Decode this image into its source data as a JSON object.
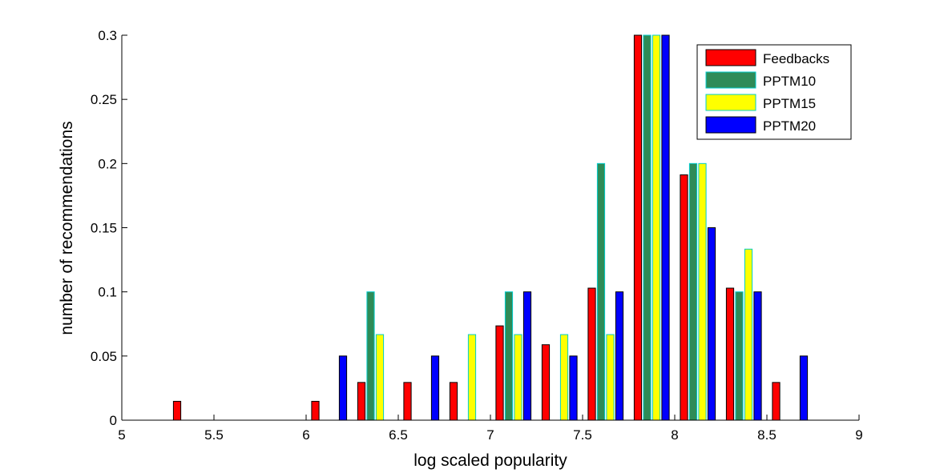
{
  "chart_data": {
    "type": "bar",
    "title": "",
    "xlabel": "log scaled popularity",
    "ylabel": "number of recommendations",
    "xlim": [
      5,
      9
    ],
    "ylim": [
      0,
      0.3
    ],
    "xticks": [
      "5",
      "5.5",
      "6",
      "6.5",
      "7",
      "7.5",
      "8",
      "8.5",
      "9"
    ],
    "yticks": [
      "0",
      "0.05",
      "0.1",
      "0.15",
      "0.2",
      "0.25",
      "0.3"
    ],
    "grid": false,
    "legend_position": "top-right",
    "bin_centers": [
      5.125,
      5.375,
      5.625,
      5.875,
      6.125,
      6.375,
      6.625,
      6.875,
      7.125,
      7.375,
      7.625,
      7.875,
      8.125,
      8.375,
      8.625,
      8.875
    ],
    "series": [
      {
        "name": "Feedbacks",
        "color": "#ff0000",
        "edge": "#000000",
        "values": [
          0,
          0.0147,
          0,
          0,
          0.0147,
          0.0294,
          0.0294,
          0.0294,
          0.0735,
          0.0588,
          0.1029,
          0.3,
          0.1912,
          0.1029,
          0.0294,
          0
        ]
      },
      {
        "name": "PPTM10",
        "color": "#2e8b57",
        "edge": "#00cccc",
        "values": [
          0,
          0,
          0,
          0,
          0,
          0.1,
          0,
          0,
          0.1,
          0,
          0.2,
          0.3,
          0.2,
          0.1,
          0,
          0
        ]
      },
      {
        "name": "PPTM15",
        "color": "#ffff00",
        "edge": "#00cccc",
        "values": [
          0,
          0,
          0,
          0,
          0,
          0.0667,
          0,
          0.0667,
          0.0667,
          0.0667,
          0.0667,
          0.3,
          0.2,
          0.1333,
          0,
          0
        ]
      },
      {
        "name": "PPTM20",
        "color": "#0000ff",
        "edge": "#000000",
        "values": [
          0,
          0,
          0,
          0,
          0.05,
          0,
          0.05,
          0,
          0.1,
          0.05,
          0.1,
          0.3,
          0.15,
          0.1,
          0.05,
          0
        ]
      }
    ]
  }
}
